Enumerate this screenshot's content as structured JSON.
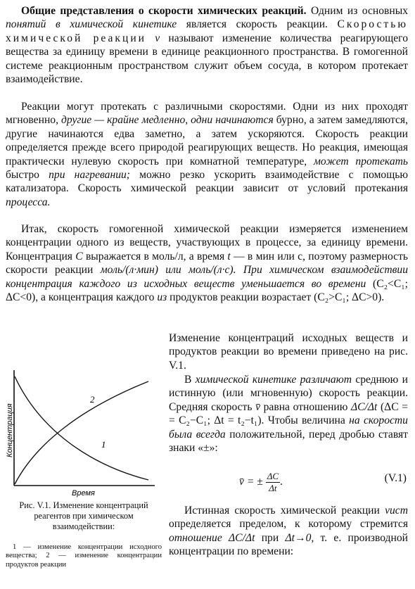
{
  "paragraph1": {
    "heading": "Общие представления о скорости химических реакций.",
    "t1": " Одним из основных ",
    "t2": "понятий в химической кинетике",
    "t3": " является скорость реакции. ",
    "term": "Скоростью химической реакции",
    "symbol": "v",
    "t4": " называют изменение количества реагирующего вещества за единицу времени в единице реакционного пространства. В гомогенной системе реакционным пространством служит объем сосуда, в котором протекает взаимодействие."
  },
  "paragraph2": {
    "t1": "Реакции могут протекать с различными скоростями. Одни из них проходят мгновенно, ",
    "t2": "другие — крайне медленно, одни начинаются",
    "t3": " бурно, а затем замедляются, другие начинаются едва заметно, а затем ускоряются. Скорость реакции определяется прежде всего природой реагирующих веществ. Но реакция, имеющая практически нулевую скорость при комнатной температуре, ",
    "t4": "может протекать",
    "t5": " быстро ",
    "t6": "при нагревании;",
    "t7": " можно резко ускорить взаимодействие с помощью катализатора. Скорость химической реакции зависит от условий протекания ",
    "t8": "процесса."
  },
  "paragraph3": {
    "t1": "Итак, скорость гомогенной химической реакции измеряется изменением концентрации одного из веществ, участвующих в процессе, за единицу времени. Концентрация ",
    "c": "C",
    "t2": " выражается в моль/л, а время ",
    "t": "t",
    "t3": " — в мин или с, поэтому размерность скорости реакции ",
    "u1": "моль/(л·мин)",
    "t4": " или ",
    "u2": "моль/(л·с).",
    "t5": " При химическом взаимодействии концентрация каждого из исходных веществ уменьшается во времени ",
    "cond1": "(C₂<C₁; ΔC<0),",
    "t6": " а концентрация каждого ",
    "t7": "из",
    "t8": " продуктов реакции возрастает ",
    "cond2": "(C₂>C₁;  ΔC>0).",
    "t9": " Изменение концентраций исходных веществ и продуктов реакции во времени приведено на рис. V.1."
  },
  "paragraph4": {
    "t1": "В ",
    "t2": "химической кинетике различают",
    "t3": " среднюю и истинную (или мгновенную) скорость реакции. Средняя скорость ",
    "vbar": "v̄",
    "t4": " равна отношению ",
    "ratio": "ΔC/Δt",
    "t5": " (ΔC = = C₂−C₁; Δt = t₂−t₁). Чтобы величина ",
    "t6": "на скорости была всегда",
    "t7": " положительной, перед дробью ставят знаки «±»:"
  },
  "formula": {
    "lhs": "v̄ = ±",
    "numerator": "ΔC",
    "denominator": "Δt",
    "dot": ".",
    "number": "(V.1)"
  },
  "paragraph5": {
    "t1": "Истинная скорость химической реакции ",
    "vist": "vист",
    "t2": " определяется пределом, к которому стремится ",
    "t3": "отношение ΔC/Δt",
    "t4": " при ",
    "lim": "Δt→0,",
    "t5": " т. е. производной концентрации по времени:"
  },
  "figure": {
    "ylabel": "Концентрация",
    "xlabel": "Время",
    "curve1_label": "1",
    "curve2_label": "2",
    "caption": "Рис. V.1. Изменение концентраций реагентов при химическом взаимодействии:",
    "legend": "1 — изменение концентрации исходного вещества; 2 — изменение концентрации продуктов реакции"
  }
}
